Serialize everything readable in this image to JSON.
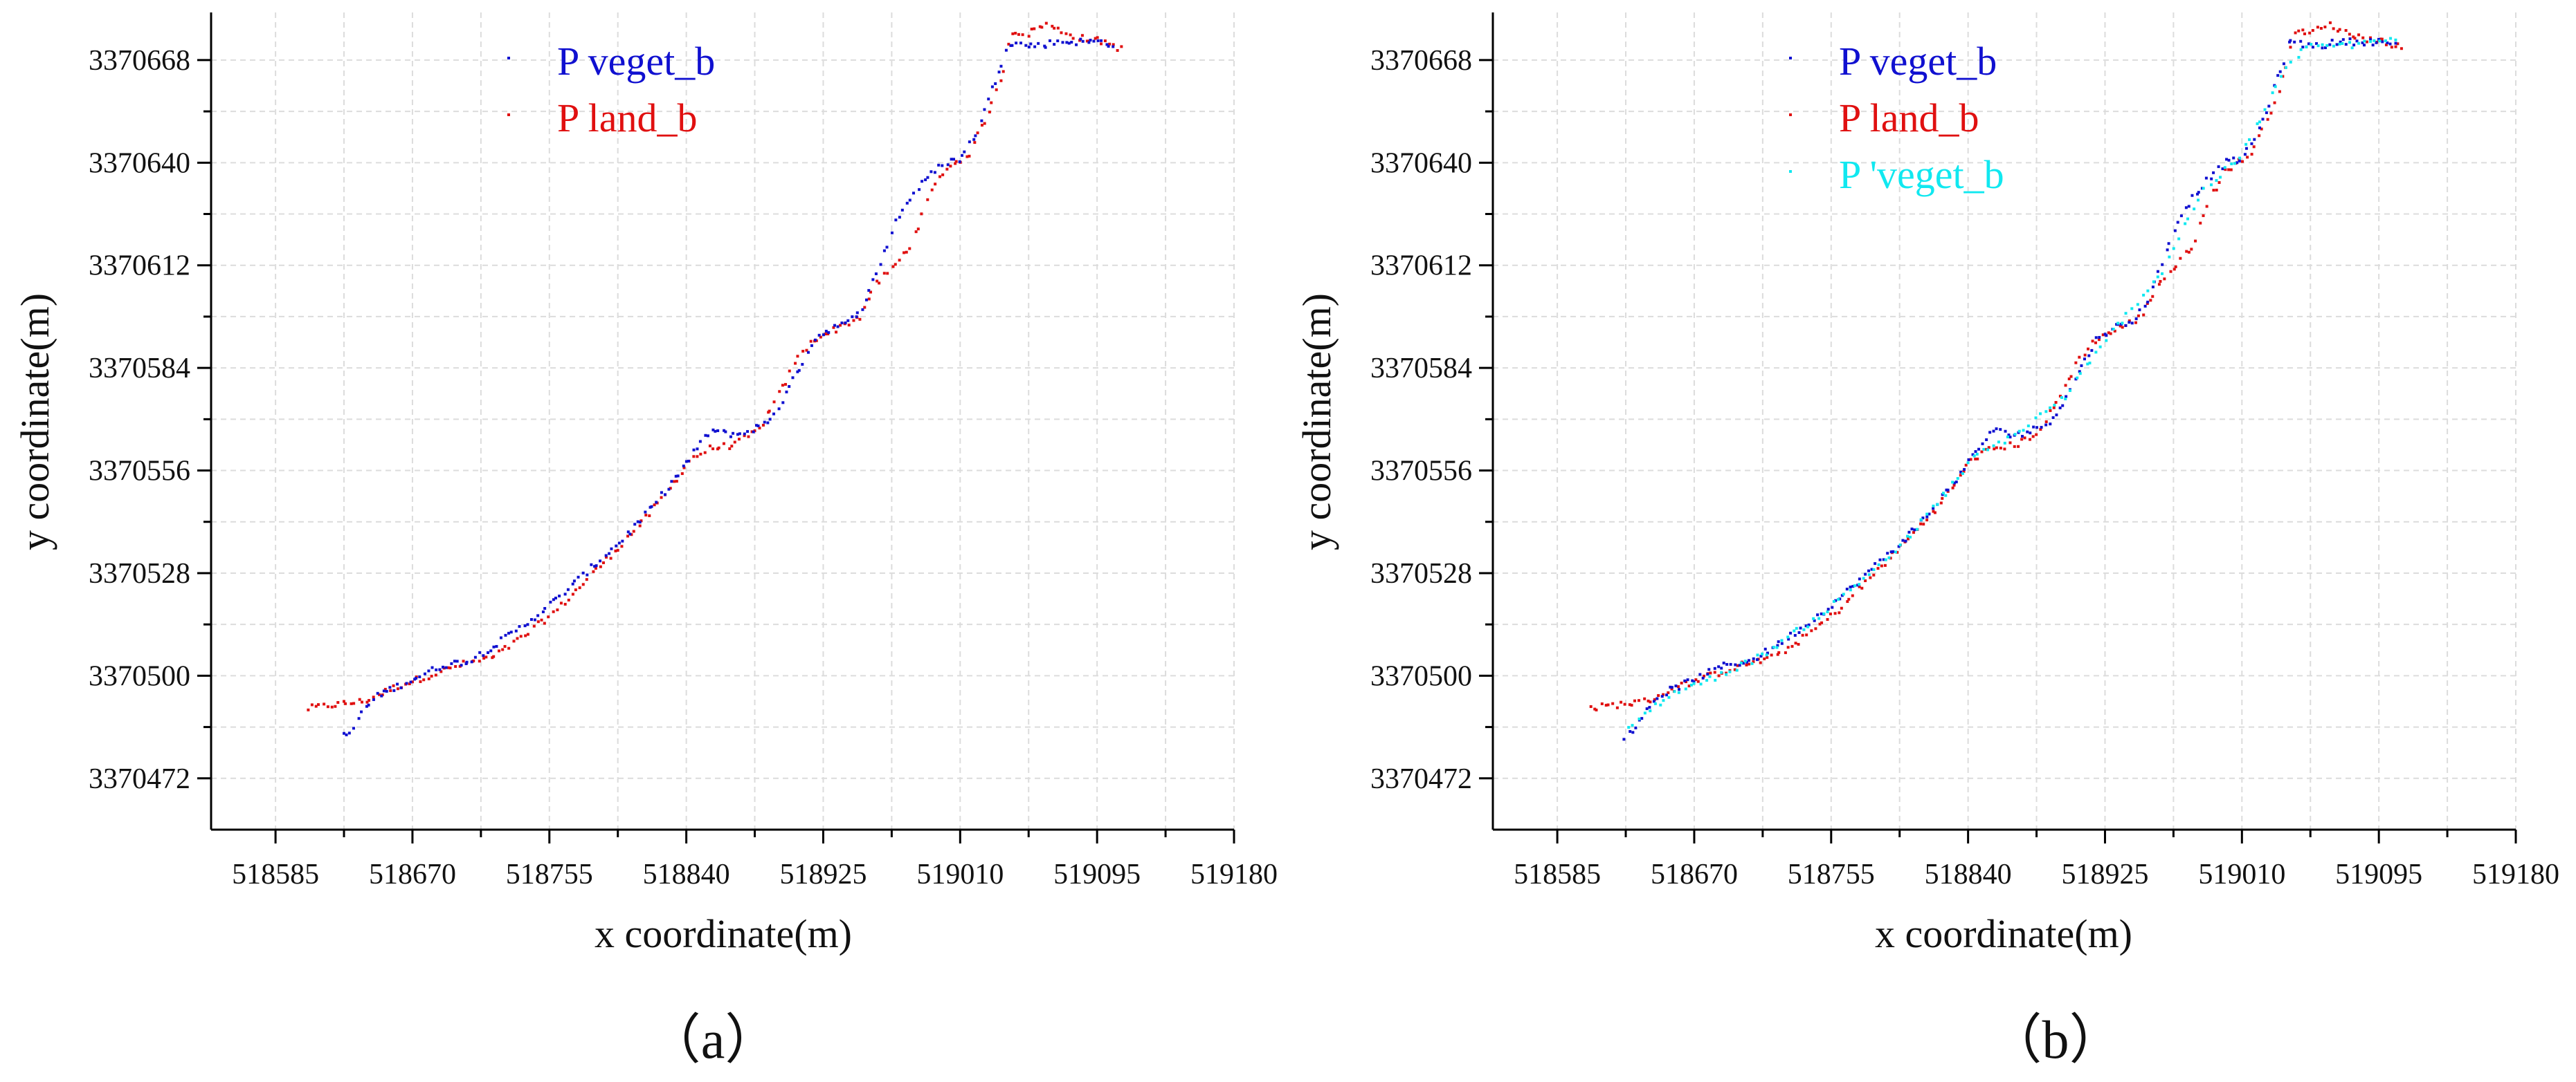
{
  "colors": {
    "veget": "#1010d0",
    "land": "#e01010",
    "veget_prime": "#10e8f0",
    "axis": "#000000",
    "grid": "#dcdcdc"
  },
  "chart_data": [
    {
      "type": "scatter",
      "panel_label": "（a）",
      "xlabel": "x coordinate(m)",
      "ylabel": "y coordinate(m)",
      "xlim": [
        518545,
        519180
      ],
      "ylim": [
        3370458,
        3370681
      ],
      "xticks": [
        518585,
        518670,
        518755,
        518840,
        518925,
        519010,
        519095,
        519180
      ],
      "yticks": [
        3370472,
        3370500,
        3370528,
        3370556,
        3370584,
        3370612,
        3370640,
        3370668
      ],
      "grid": true,
      "legend_position": "top-center",
      "series": [
        {
          "name": "P veget_b",
          "color": "#1010d0"
        },
        {
          "name": "P land_b",
          "color": "#e01010"
        }
      ]
    },
    {
      "type": "scatter",
      "panel_label": "（b）",
      "xlabel": "x coordinate(m)",
      "ylabel": "y coordinate(m)",
      "xlim": [
        518545,
        519180
      ],
      "ylim": [
        3370458,
        3370681
      ],
      "xticks": [
        518585,
        518670,
        518755,
        518840,
        518925,
        519010,
        519095,
        519180
      ],
      "yticks": [
        3370472,
        3370500,
        3370528,
        3370556,
        3370584,
        3370612,
        3370640,
        3370668
      ],
      "grid": true,
      "legend_position": "top-center",
      "series": [
        {
          "name": "P veget_b",
          "color": "#1010d0"
        },
        {
          "name": "P land_b",
          "color": "#e01010"
        },
        {
          "name": "P 'veget_b",
          "color": "#10e8f0"
        }
      ]
    }
  ],
  "trace": {
    "veget": [
      [
        518627,
        3370483.5
      ],
      [
        518632,
        3370484.5
      ],
      [
        518640,
        3370491
      ],
      [
        518650,
        3370495
      ],
      [
        518660,
        3370497
      ],
      [
        518675,
        3370500
      ],
      [
        518690,
        3370503
      ],
      [
        518705,
        3370504
      ],
      [
        518720,
        3370508
      ],
      [
        518740,
        3370514
      ],
      [
        518760,
        3370521
      ],
      [
        518780,
        3370529
      ],
      [
        518800,
        3370537
      ],
      [
        518815,
        3370544
      ],
      [
        518830,
        3370552
      ],
      [
        518845,
        3370561
      ],
      [
        518855,
        3370567
      ],
      [
        518865,
        3370566
      ],
      [
        518875,
        3370566
      ],
      [
        518890,
        3370569
      ],
      [
        518900,
        3370575
      ],
      [
        518910,
        3370584
      ],
      [
        518920,
        3370592
      ],
      [
        518930,
        3370595
      ],
      [
        518940,
        3370596
      ],
      [
        518950,
        3370601
      ],
      [
        518960,
        3370612
      ],
      [
        518970,
        3370624
      ],
      [
        518980,
        3370631
      ],
      [
        518990,
        3370636
      ],
      [
        519000,
        3370640
      ],
      [
        519010,
        3370641
      ],
      [
        519020,
        3370648
      ],
      [
        519030,
        3370660
      ],
      [
        519040,
        3370673
      ],
      [
        519050,
        3370672
      ],
      [
        519060,
        3370672
      ],
      [
        519070,
        3370673
      ],
      [
        519085,
        3370673
      ],
      [
        519100,
        3370673
      ],
      [
        519105,
        3370672
      ]
    ],
    "land": [
      [
        518605,
        3370491
      ],
      [
        518620,
        3370492
      ],
      [
        518640,
        3370493
      ],
      [
        518660,
        3370497
      ],
      [
        518680,
        3370500
      ],
      [
        518700,
        3370503
      ],
      [
        518720,
        3370505
      ],
      [
        518740,
        3370511
      ],
      [
        518760,
        3370518
      ],
      [
        518780,
        3370527
      ],
      [
        518800,
        3370536
      ],
      [
        518815,
        3370543
      ],
      [
        518830,
        3370551
      ],
      [
        518842,
        3370559
      ],
      [
        518855,
        3370562
      ],
      [
        518870,
        3370563
      ],
      [
        518885,
        3370567
      ],
      [
        518897,
        3370576
      ],
      [
        518908,
        3370586
      ],
      [
        518920,
        3370592
      ],
      [
        518935,
        3370595
      ],
      [
        518948,
        3370598
      ],
      [
        518958,
        3370607
      ],
      [
        518970,
        3370612
      ],
      [
        518980,
        3370618
      ],
      [
        518990,
        3370630
      ],
      [
        519000,
        3370638
      ],
      [
        519015,
        3370642
      ],
      [
        519025,
        3370651
      ],
      [
        519035,
        3370662
      ],
      [
        519042,
        3370676
      ],
      [
        519052,
        3370675
      ],
      [
        519062,
        3370678
      ],
      [
        519072,
        3370676
      ],
      [
        519085,
        3370674
      ],
      [
        519100,
        3370673
      ],
      [
        519110,
        3370671
      ]
    ],
    "veget_prime": [
      [
        518629,
        3370485
      ],
      [
        518640,
        3370490
      ],
      [
        518660,
        3370496
      ],
      [
        518680,
        3370499
      ],
      [
        518710,
        3370505
      ],
      [
        518750,
        3370517
      ],
      [
        518800,
        3370536
      ],
      [
        518845,
        3370560
      ],
      [
        518870,
        3370566
      ],
      [
        518900,
        3370576
      ],
      [
        518930,
        3370594
      ],
      [
        518960,
        3370610
      ],
      [
        518985,
        3370632
      ],
      [
        519010,
        3370642
      ],
      [
        519035,
        3370664
      ],
      [
        519050,
        3370672
      ],
      [
        519080,
        3370672
      ],
      [
        519105,
        3370674
      ]
    ]
  }
}
